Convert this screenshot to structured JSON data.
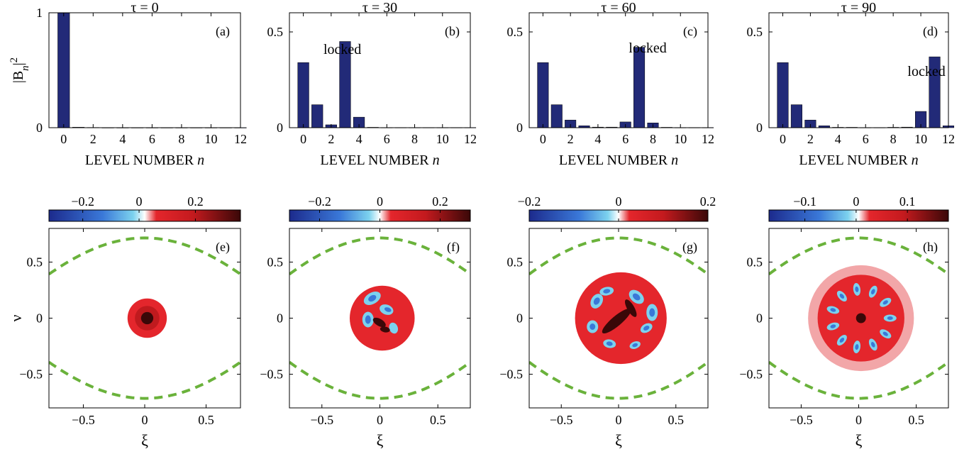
{
  "bar_panels": [
    {
      "tau_label": "τ = 0",
      "panel_label": "(a)",
      "annotation": "",
      "ylim": [
        0,
        1
      ],
      "yticks": [
        "0",
        "1"
      ],
      "ylabel_main": "|B",
      "ylabel_sub": "n",
      "ylabel_sup": "2"
    },
    {
      "tau_label": "τ = 30",
      "panel_label": "(b)",
      "annotation": "locked",
      "ylim": [
        0,
        0.6
      ],
      "yticks": [
        "0",
        "0.5"
      ],
      "ylabel_main": "",
      "ylabel_sub": "",
      "ylabel_sup": ""
    },
    {
      "tau_label": "τ = 60",
      "panel_label": "(c)",
      "annotation": "locked",
      "ylim": [
        0,
        0.6
      ],
      "yticks": [
        "0",
        "0.5"
      ],
      "ylabel_main": "",
      "ylabel_sub": "",
      "ylabel_sup": ""
    },
    {
      "tau_label": "τ = 90",
      "panel_label": "(d)",
      "annotation": "locked",
      "ylim": [
        0,
        0.6
      ],
      "yticks": [
        "0",
        "0.5"
      ],
      "ylabel_main": "",
      "ylabel_sub": "",
      "ylabel_sup": ""
    }
  ],
  "bar_xlabel_text": "LEVEL NUMBER ",
  "bar_xlabel_var": "n",
  "bar_xticks": [
    "0",
    "2",
    "4",
    "6",
    "8",
    "10",
    "12"
  ],
  "map_panels": [
    {
      "panel_label": "(e)",
      "cbar_ticks": [
        {
          "v": -0.2,
          "t": "−0.2"
        },
        {
          "v": 0,
          "t": "0"
        },
        {
          "v": 0.2,
          "t": "0.2"
        }
      ],
      "cbar_range": [
        -0.32,
        0.36
      ]
    },
    {
      "panel_label": "(f)",
      "cbar_ticks": [
        {
          "v": -0.2,
          "t": "−0.2"
        },
        {
          "v": 0,
          "t": "0"
        },
        {
          "v": 0.2,
          "t": "0.2"
        }
      ],
      "cbar_range": [
        -0.3,
        0.3
      ]
    },
    {
      "panel_label": "(g)",
      "cbar_ticks": [
        {
          "v": -0.2,
          "t": "−0.2"
        },
        {
          "v": 0,
          "t": "0"
        },
        {
          "v": 0.2,
          "t": "0.2"
        }
      ],
      "cbar_range": [
        -0.2,
        0.2
      ]
    },
    {
      "panel_label": "(h)",
      "cbar_ticks": [
        {
          "v": -0.1,
          "t": "−0.1"
        },
        {
          "v": 0,
          "t": "0"
        },
        {
          "v": 0.1,
          "t": "0.1"
        }
      ],
      "cbar_range": [
        -0.17,
        0.18
      ]
    }
  ],
  "map_xlabel": "ξ",
  "map_ylabel": "ν",
  "map_xticks": [
    {
      "v": -0.5,
      "t": "−0.5"
    },
    {
      "v": 0,
      "t": "0"
    },
    {
      "v": 0.5,
      "t": "0.5"
    }
  ],
  "map_yticks": [
    {
      "v": 0.5,
      "t": "0.5"
    },
    {
      "v": 0,
      "t": "0"
    },
    {
      "v": -0.5,
      "t": "−0.5"
    }
  ],
  "colors": {
    "bar": "#222a78",
    "separatrix": "#6ab23b",
    "cmap": [
      "#1c2a8c",
      "#3a78d8",
      "#7cd2ee",
      "#ffffff",
      "#e4262c",
      "#c41a1e",
      "#3a0808"
    ]
  },
  "chart_data": [
    {
      "type": "bar",
      "categories": [
        0,
        1,
        2,
        3,
        4,
        5,
        6,
        7,
        8,
        9,
        10,
        11,
        12
      ],
      "values": [
        1.0,
        0.004,
        0.002,
        0.001,
        0.001,
        0.001,
        0.001,
        0.001,
        0.001,
        0.001,
        0.001,
        0.001,
        0.001
      ],
      "xlim": [
        -1,
        12
      ],
      "ylim": [
        0,
        1
      ]
    },
    {
      "type": "bar",
      "categories": [
        0,
        1,
        2,
        3,
        4,
        5,
        6,
        7,
        8,
        9,
        10,
        11,
        12
      ],
      "values": [
        0.34,
        0.12,
        0.015,
        0.45,
        0.055,
        0.002,
        0.001,
        0.001,
        0.001,
        0.001,
        0.001,
        0.001,
        0.001
      ],
      "xlim": [
        -1,
        12
      ],
      "ylim": [
        0,
        0.6
      ]
    },
    {
      "type": "bar",
      "categories": [
        0,
        1,
        2,
        3,
        4,
        5,
        6,
        7,
        8,
        9,
        10,
        11,
        12
      ],
      "values": [
        0.34,
        0.12,
        0.04,
        0.01,
        0.003,
        0.003,
        0.03,
        0.42,
        0.025,
        0.002,
        0.001,
        0.001,
        0.001
      ],
      "xlim": [
        -1,
        12
      ],
      "ylim": [
        0,
        0.6
      ]
    },
    {
      "type": "bar",
      "categories": [
        0,
        1,
        2,
        3,
        4,
        5,
        6,
        7,
        8,
        9,
        10,
        11,
        12
      ],
      "values": [
        0.34,
        0.12,
        0.04,
        0.01,
        0.002,
        0.002,
        0.001,
        0.001,
        0.002,
        0.003,
        0.085,
        0.37,
        0.01
      ],
      "xlim": [
        -1,
        12
      ],
      "ylim": [
        0,
        0.6
      ]
    },
    {
      "type": "heatmap",
      "xlim": [
        -0.78,
        0.78
      ],
      "ylim": [
        -0.8,
        0.8
      ]
    },
    {
      "type": "heatmap",
      "xlim": [
        -0.78,
        0.78
      ],
      "ylim": [
        -0.8,
        0.8
      ]
    },
    {
      "type": "heatmap",
      "xlim": [
        -0.78,
        0.78
      ],
      "ylim": [
        -0.8,
        0.8
      ]
    },
    {
      "type": "heatmap",
      "xlim": [
        -0.78,
        0.78
      ],
      "ylim": [
        -0.8,
        0.8
      ]
    }
  ]
}
